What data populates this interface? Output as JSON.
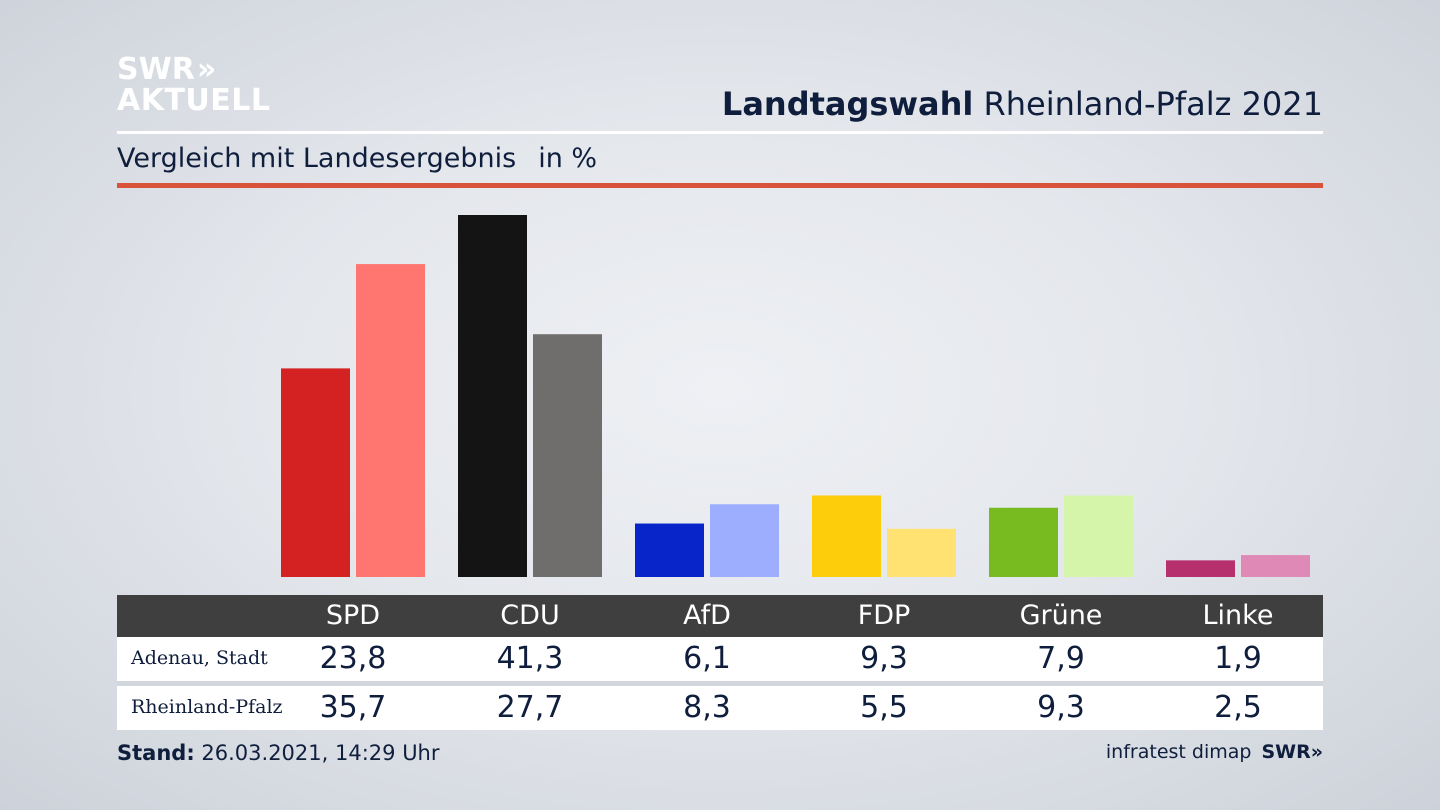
{
  "logo": {
    "line1": "SWR",
    "chevrons": "»",
    "line2": "AKTUELL"
  },
  "header": {
    "title_bold": "Landtagswahl",
    "title_rest": "Rheinland-Pfalz 2021"
  },
  "subtitle": {
    "text": "Vergleich mit Landesergebnis",
    "unit": "in %"
  },
  "colors": {
    "rule_accent": "#d9533b",
    "header_row": "#3f3f3f",
    "text": "#0f1e3c"
  },
  "table": {
    "rows": [
      {
        "label": "Adenau, Stadt",
        "values": [
          "23,8",
          "41,3",
          "6,1",
          "9,3",
          "7,9",
          "1,9"
        ]
      },
      {
        "label": "Rheinland-Pfalz",
        "values": [
          "35,7",
          "27,7",
          "8,3",
          "5,5",
          "9,3",
          "2,5"
        ]
      }
    ]
  },
  "chart_data": {
    "type": "bar",
    "categories": [
      "SPD",
      "CDU",
      "AfD",
      "FDP",
      "Grüne",
      "Linke"
    ],
    "series": [
      {
        "name": "Adenau, Stadt",
        "values": [
          23.8,
          41.3,
          6.1,
          9.3,
          7.9,
          1.9
        ],
        "colors": [
          "#d42121",
          "#141414",
          "#0725c8",
          "#fdcc0a",
          "#78bb20",
          "#b5306d"
        ]
      },
      {
        "name": "Rheinland-Pfalz",
        "values": [
          35.7,
          27.7,
          8.3,
          5.5,
          9.3,
          2.5
        ],
        "colors": [
          "#ff7570",
          "#6f6e6c",
          "#9eaeff",
          "#ffe271",
          "#d5f5aa",
          "#de89b6"
        ]
      }
    ],
    "title": "",
    "xlabel": "",
    "ylabel": "",
    "ylim": [
      0,
      41.3
    ],
    "grid": false,
    "legend": "none"
  },
  "footer": {
    "stand_label": "Stand:",
    "stand_value": "26.03.2021, 14:29 Uhr",
    "source": "infratest dimap",
    "brand": "SWR»"
  }
}
